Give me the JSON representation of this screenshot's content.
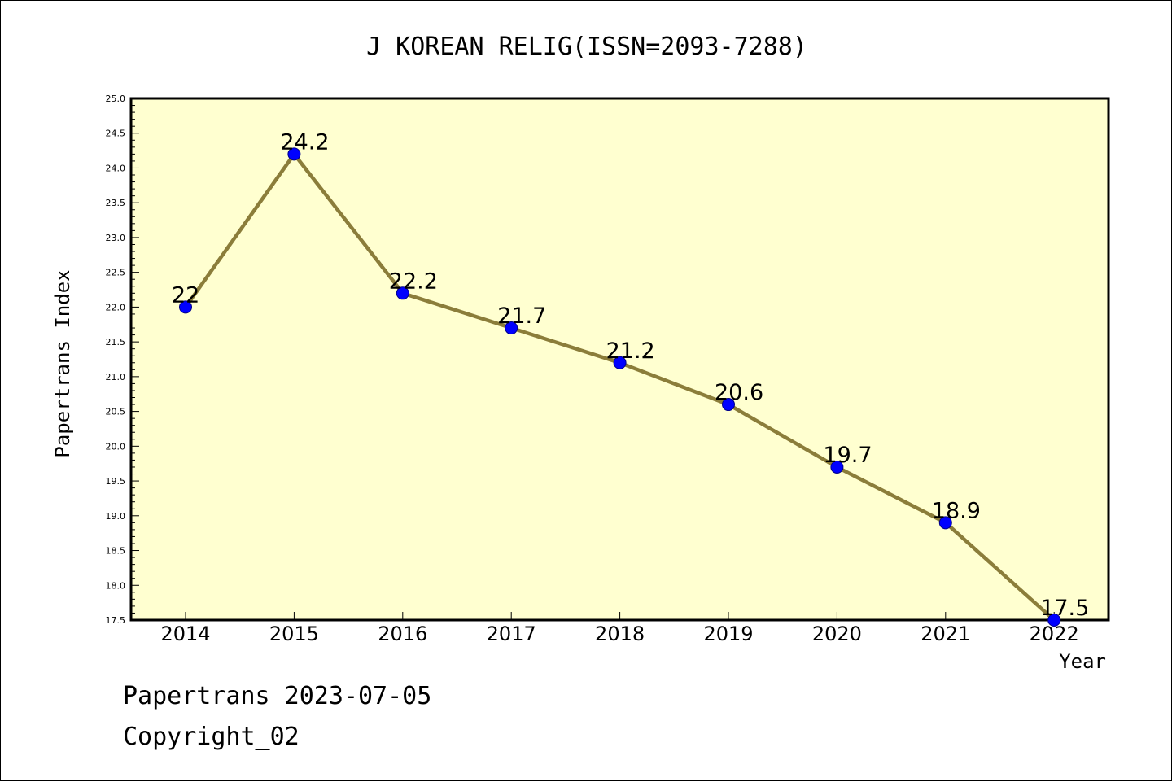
{
  "chart_data": {
    "type": "line",
    "title": "J KOREAN RELIG(ISSN=2093-7288)",
    "xlabel": "Year",
    "ylabel": "Papertrans Index",
    "categories": [
      "2014",
      "2015",
      "2016",
      "2017",
      "2018",
      "2019",
      "2020",
      "2021",
      "2022"
    ],
    "values": [
      22,
      24.2,
      22.2,
      21.7,
      21.2,
      20.6,
      19.7,
      18.9,
      17.5
    ],
    "data_labels": [
      "22",
      "24.2",
      "22.2",
      "21.7",
      "21.2",
      "20.6",
      "19.7",
      "18.9",
      "17.5"
    ],
    "ylim": [
      17.5,
      25.0
    ],
    "yticks": [
      "17.5",
      "18.0",
      "18.5",
      "19.0",
      "19.5",
      "20.0",
      "20.5",
      "21.0",
      "21.5",
      "22.0",
      "22.5",
      "23.0",
      "23.5",
      "24.0",
      "24.5",
      "25.0"
    ],
    "grid": false,
    "legend": "none",
    "colors": {
      "plot_background": "#ffffd0",
      "line": "#8b7d3a",
      "marker_fill": "#0000ff",
      "marker_edge": "#00008b"
    }
  },
  "footer": {
    "line1": "Papertrans 2023-07-05",
    "line2": "Copyright_02"
  }
}
